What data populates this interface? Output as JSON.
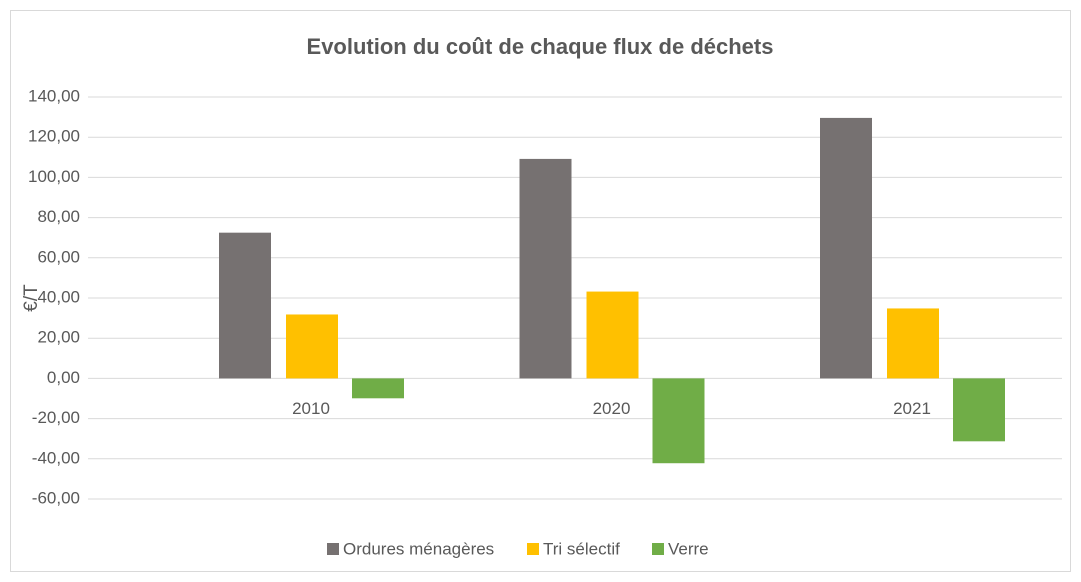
{
  "chart_data": {
    "type": "bar",
    "title": "Evolution du coût de  chaque flux de déchets",
    "y_label": "€/T",
    "categories": [
      "2010",
      "2020",
      "2021"
    ],
    "series": [
      {
        "name": "Ordures ménagères",
        "color": "#767171",
        "values": [
          72.5,
          109.2,
          129.6
        ]
      },
      {
        "name": "Tri sélectif",
        "color": "#ffc000",
        "values": [
          31.8,
          43.2,
          34.8
        ]
      },
      {
        "name": "Verre",
        "color": "#70ad47",
        "values": [
          -9.9,
          -42.2,
          -31.3
        ]
      }
    ],
    "ylim": [
      -60,
      140
    ],
    "yticks": [
      {
        "value": -60,
        "label": "-60,00"
      },
      {
        "value": -40,
        "label": "-40,00"
      },
      {
        "value": -20,
        "label": "-20,00"
      },
      {
        "value": 0,
        "label": "0,00"
      },
      {
        "value": 20,
        "label": "20,00"
      },
      {
        "value": 40,
        "label": "40,00"
      },
      {
        "value": 60,
        "label": "60,00"
      },
      {
        "value": 80,
        "label": "80,00"
      },
      {
        "value": 100,
        "label": "100,00"
      },
      {
        "value": 120,
        "label": "120,00"
      },
      {
        "value": 140,
        "label": "140,00"
      }
    ],
    "grid": true,
    "legend": "bottom"
  }
}
